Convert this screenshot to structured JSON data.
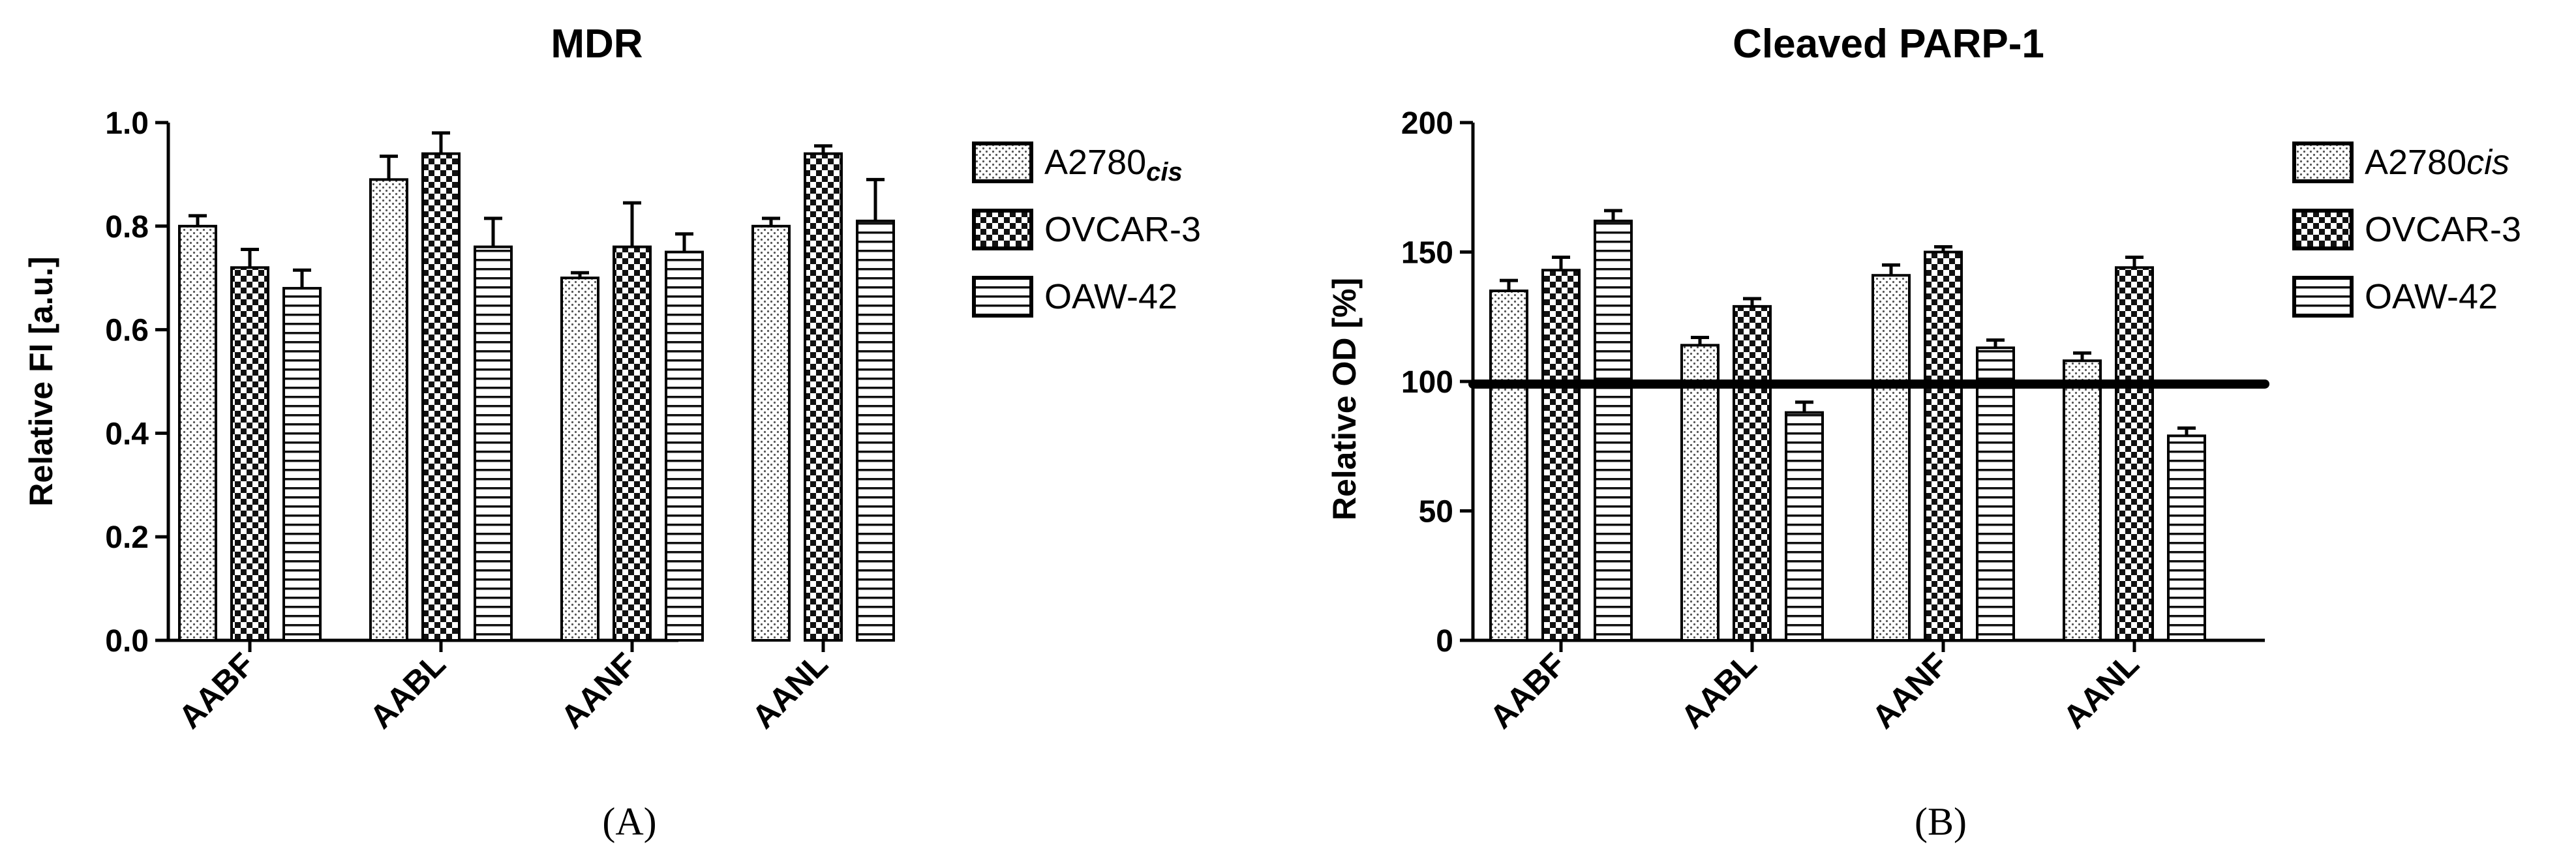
{
  "chart_data": [
    {
      "type": "bar",
      "title": "MDR",
      "panel_label": "(A)",
      "ylabel": "Relative FI [a.u.]",
      "xlabel": "",
      "ylim": [
        0,
        1.0
      ],
      "yticks": [
        0.0,
        0.2,
        0.4,
        0.6,
        0.8,
        1.0
      ],
      "ytick_labels": [
        "0.0",
        "0.2",
        "0.4",
        "0.6",
        "0.8",
        "1.0"
      ],
      "categories": [
        "AABF",
        "AABL",
        "AANF",
        "AANL"
      ],
      "series": [
        {
          "name": "A2780",
          "name_subscript": "cis",
          "pattern": "dots",
          "values": [
            0.8,
            0.89,
            0.7,
            0.8
          ],
          "errors": [
            0.02,
            0.045,
            0.01,
            0.015
          ]
        },
        {
          "name": "OVCAR-3",
          "name_subscript": "",
          "pattern": "checker",
          "values": [
            0.72,
            0.94,
            0.76,
            0.94
          ],
          "errors": [
            0.035,
            0.04,
            0.085,
            0.015
          ]
        },
        {
          "name": "OAW-42",
          "name_subscript": "",
          "pattern": "hlines",
          "values": [
            0.68,
            0.76,
            0.75,
            0.81
          ],
          "errors": [
            0.035,
            0.055,
            0.035,
            0.08
          ]
        }
      ],
      "legend_position": "right",
      "reference_line": null
    },
    {
      "type": "bar",
      "title": "Cleaved PARP-1",
      "panel_label": "(B)",
      "ylabel": "Relative OD [%]",
      "xlabel": "",
      "ylim": [
        0,
        200
      ],
      "yticks": [
        0,
        50,
        100,
        150,
        200
      ],
      "ytick_labels": [
        "0",
        "50",
        "100",
        "150",
        "200"
      ],
      "categories": [
        "AABF",
        "AABL",
        "AANF",
        "AANL"
      ],
      "series": [
        {
          "name": "A2780",
          "name_subscript": "",
          "name_italic": "cis",
          "pattern": "dots",
          "values": [
            135,
            114,
            141,
            108
          ],
          "errors": [
            4,
            3,
            4,
            3
          ]
        },
        {
          "name": "OVCAR-3",
          "name_subscript": "",
          "pattern": "checker",
          "values": [
            143,
            129,
            150,
            144
          ],
          "errors": [
            5,
            3,
            2,
            4
          ]
        },
        {
          "name": "OAW-42",
          "name_subscript": "",
          "pattern": "hlines",
          "values": [
            162,
            88,
            113,
            79
          ],
          "errors": [
            4,
            4,
            3,
            3
          ]
        }
      ],
      "legend_position": "right",
      "reference_line": 99
    }
  ]
}
